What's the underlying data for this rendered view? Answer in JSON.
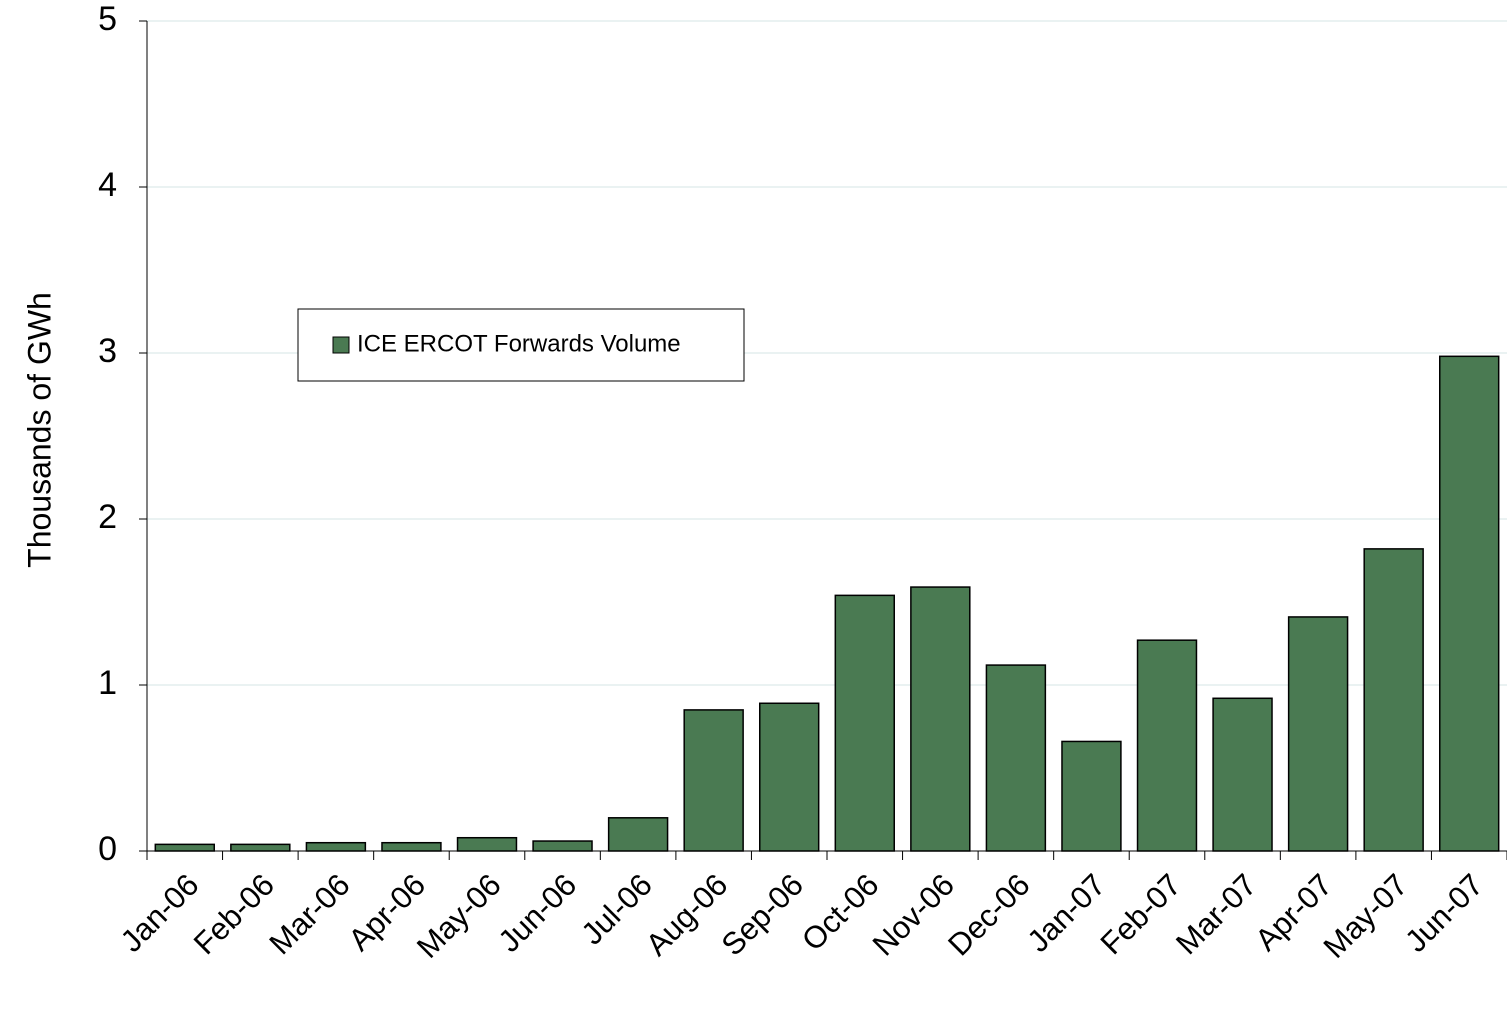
{
  "chart_data": {
    "type": "bar",
    "y_axis_label": "Thousands of GWh",
    "categories": [
      "Jan-06",
      "Feb-06",
      "Mar-06",
      "Apr-06",
      "May-06",
      "Jun-06",
      "Jul-06",
      "Aug-06",
      "Sep-06",
      "Oct-06",
      "Nov-06",
      "Dec-06",
      "Jan-07",
      "Feb-07",
      "Mar-07",
      "Apr-07",
      "May-07",
      "Jun-07"
    ],
    "series": [
      {
        "name": "ICE ERCOT Forwards Volume",
        "color": "#4a7a52",
        "values": [
          0.04,
          0.04,
          0.05,
          0.05,
          0.08,
          0.06,
          0.2,
          0.85,
          0.89,
          1.54,
          1.59,
          1.12,
          0.66,
          1.27,
          0.92,
          1.41,
          1.82,
          2.98
        ]
      }
    ],
    "ylim": [
      0,
      5
    ],
    "yticks": [
      0,
      1,
      2,
      3,
      4,
      5
    ],
    "grid": true,
    "legend": "upper left"
  }
}
